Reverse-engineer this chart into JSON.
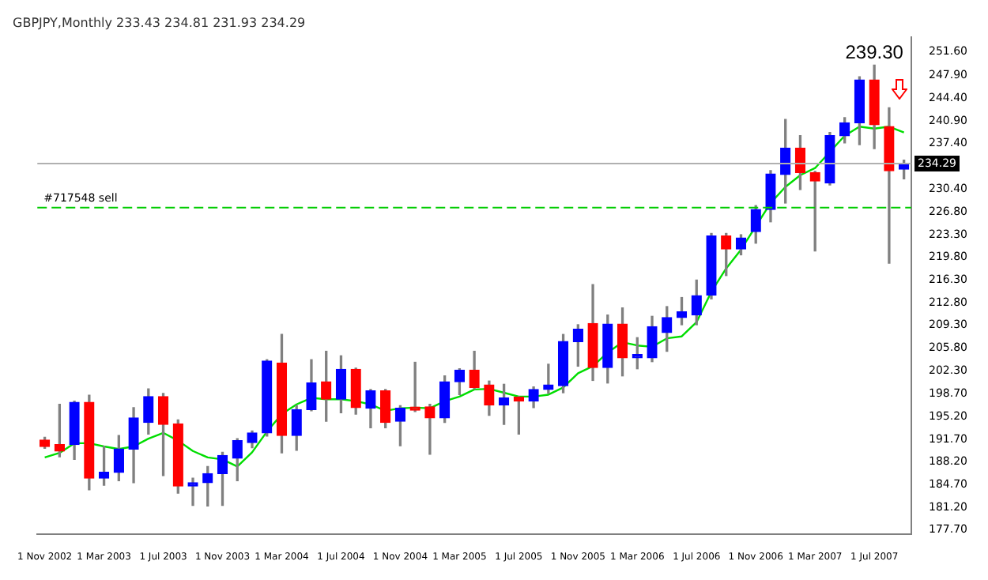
{
  "chart_data": {
    "type": "candlestick",
    "title": "GBPJPY,Monthly 233.43 234.81 231.93 234.29",
    "categories": [
      "1 Nov 2002",
      null,
      null,
      null,
      "1 Mar 2003",
      null,
      null,
      null,
      "1 Jul 2003",
      null,
      null,
      null,
      "1 Nov 2003",
      null,
      null,
      null,
      "1 Mar 2004",
      null,
      null,
      null,
      "1 Jul 2004",
      null,
      null,
      null,
      "1 Nov 2004",
      null,
      null,
      null,
      "1 Mar 2005",
      null,
      null,
      null,
      "1 Jul 2005",
      null,
      null,
      null,
      "1 Nov 2005",
      null,
      null,
      null,
      "1 Mar 2006",
      null,
      null,
      null,
      "1 Jul 2006",
      null,
      null,
      null,
      "1 Nov 2006",
      null,
      null,
      null,
      "1 Mar 2007",
      null,
      null,
      null,
      "1 Jul 2007",
      null,
      null
    ],
    "series": [
      {
        "type": "candlestick",
        "ohlc": [
          [
            191.6,
            192.0,
            190.3,
            190.6
          ],
          [
            190.9,
            197.1,
            189.0,
            189.9
          ],
          [
            190.9,
            197.6,
            188.6,
            197.4
          ],
          [
            197.4,
            198.5,
            183.9,
            185.7
          ],
          [
            185.7,
            190.6,
            184.6,
            186.6
          ],
          [
            186.6,
            192.3,
            185.3,
            190.2
          ],
          [
            190.2,
            196.6,
            185.0,
            195.0
          ],
          [
            194.3,
            199.5,
            192.5,
            198.3
          ],
          [
            198.3,
            198.8,
            186.1,
            194.0
          ],
          [
            194.1,
            194.7,
            183.4,
            184.5
          ],
          [
            184.5,
            185.7,
            181.5,
            185.0
          ],
          [
            185.0,
            187.5,
            181.4,
            186.4
          ],
          [
            186.4,
            189.7,
            181.5,
            189.2
          ],
          [
            188.8,
            191.8,
            185.3,
            191.5
          ],
          [
            191.2,
            193.0,
            190.4,
            192.7
          ],
          [
            192.7,
            204.0,
            192.2,
            203.8
          ],
          [
            203.5,
            207.9,
            189.6,
            192.3
          ],
          [
            192.3,
            196.9,
            190.0,
            196.3
          ],
          [
            196.3,
            204.0,
            196.1,
            200.4
          ],
          [
            200.6,
            205.3,
            194.5,
            197.9
          ],
          [
            197.9,
            204.6,
            195.8,
            202.5
          ],
          [
            202.5,
            202.7,
            195.6,
            196.6
          ],
          [
            196.5,
            199.4,
            193.5,
            199.2
          ],
          [
            199.2,
            199.4,
            193.5,
            194.3
          ],
          [
            194.5,
            196.9,
            190.7,
            196.5
          ],
          [
            196.6,
            203.6,
            196.0,
            196.2
          ],
          [
            196.7,
            197.1,
            189.4,
            195.0
          ],
          [
            195.0,
            201.5,
            194.3,
            200.6
          ],
          [
            200.6,
            202.6,
            198.6,
            202.4
          ],
          [
            202.4,
            205.3,
            199.5,
            199.7
          ],
          [
            200.1,
            200.7,
            195.4,
            197.0
          ],
          [
            197.0,
            200.2,
            194.0,
            198.1
          ],
          [
            198.2,
            198.3,
            192.5,
            197.6
          ],
          [
            197.6,
            199.8,
            196.6,
            199.4
          ],
          [
            199.4,
            203.3,
            198.8,
            200.1
          ],
          [
            200.0,
            207.9,
            198.9,
            206.8
          ],
          [
            206.8,
            209.4,
            203.0,
            208.7
          ],
          [
            209.6,
            215.6,
            200.8,
            202.8
          ],
          [
            202.8,
            210.9,
            200.4,
            209.5
          ],
          [
            209.5,
            212.0,
            201.5,
            204.3
          ],
          [
            204.3,
            207.4,
            202.6,
            204.4
          ],
          [
            204.3,
            210.7,
            203.7,
            209.1
          ],
          [
            208.2,
            212.2,
            205.3,
            210.5
          ],
          [
            210.5,
            213.6,
            209.4,
            211.4
          ],
          [
            210.9,
            216.3,
            209.4,
            213.9
          ],
          [
            214.0,
            223.5,
            213.4,
            223.1
          ],
          [
            223.1,
            223.5,
            217.0,
            221.1
          ],
          [
            221.1,
            223.3,
            220.2,
            222.8
          ],
          [
            223.8,
            227.8,
            222.0,
            227.2
          ],
          [
            227.2,
            233.2,
            225.3,
            232.7
          ],
          [
            232.6,
            241.1,
            228.2,
            236.7
          ],
          [
            236.7,
            238.6,
            230.3,
            232.9
          ],
          [
            232.9,
            233.1,
            220.8,
            231.6
          ],
          [
            231.3,
            239.1,
            231.0,
            238.6
          ],
          [
            238.6,
            241.4,
            237.5,
            240.6
          ],
          [
            240.6,
            247.7,
            237.2,
            247.2
          ],
          [
            247.2,
            249.5,
            236.6,
            240.3
          ],
          [
            240.0,
            242.9,
            218.9,
            233.2
          ],
          [
            233.43,
            234.81,
            231.93,
            234.29
          ]
        ],
        "colors": [
          "#ff0000",
          "#ff0000",
          "#0000ff",
          "#ff0000",
          "#0000ff",
          "#0000ff",
          "#0000ff",
          "#0000ff",
          "#ff0000",
          "#ff0000",
          "#0000ff",
          "#0000ff",
          "#0000ff",
          "#0000ff",
          "#0000ff",
          "#0000ff",
          "#ff0000",
          "#0000ff",
          "#0000ff",
          "#ff0000",
          "#0000ff",
          "#ff0000",
          "#0000ff",
          "#ff0000",
          "#0000ff",
          "#ff0000",
          "#ff0000",
          "#0000ff",
          "#0000ff",
          "#ff0000",
          "#ff0000",
          "#0000ff",
          "#ff0000",
          "#0000ff",
          "#0000ff",
          "#0000ff",
          "#0000ff",
          "#ff0000",
          "#0000ff",
          "#ff0000",
          "#0000ff",
          "#0000ff",
          "#0000ff",
          "#0000ff",
          "#0000ff",
          "#0000ff",
          "#ff0000",
          "#0000ff",
          "#0000ff",
          "#0000ff",
          "#0000ff",
          "#ff0000",
          "#ff0000",
          "#0000ff",
          "#0000ff",
          "#0000ff",
          "#ff0000",
          "#ff0000",
          "#0000ff"
        ]
      },
      {
        "type": "line",
        "color": "#00dd00",
        "values": [
          188.9,
          189.6,
          191.1,
          191.1,
          190.6,
          190.2,
          190.6,
          191.8,
          192.7,
          191.5,
          189.9,
          188.9,
          188.6,
          187.5,
          189.7,
          192.9,
          195.6,
          197.1,
          198.1,
          197.9,
          197.9,
          197.6,
          197.1,
          196.1,
          196.5,
          196.6,
          196.5,
          197.6,
          198.3,
          199.4,
          199.5,
          198.9,
          198.3,
          198.3,
          198.6,
          199.7,
          201.9,
          203.0,
          205.1,
          206.7,
          206.2,
          206.0,
          207.3,
          207.6,
          209.8,
          214.5,
          218.1,
          221.0,
          224.6,
          228.2,
          230.7,
          232.5,
          233.6,
          236.1,
          238.6,
          240.0,
          239.7,
          240.0,
          239.1
        ]
      }
    ],
    "ylim": [
      177.1,
      253.8
    ],
    "yticks": [
      {
        "value": 177.7,
        "label": "177.70"
      },
      {
        "value": 181.2,
        "label": "181.20"
      },
      {
        "value": 184.7,
        "label": "184.70"
      },
      {
        "value": 188.2,
        "label": "188.20"
      },
      {
        "value": 191.7,
        "label": "191.70"
      },
      {
        "value": 195.2,
        "label": "195.20"
      },
      {
        "value": 198.7,
        "label": "198.70"
      },
      {
        "value": 202.3,
        "label": "202.30"
      },
      {
        "value": 205.8,
        "label": "205.80"
      },
      {
        "value": 209.3,
        "label": "209.30"
      },
      {
        "value": 212.8,
        "label": "212.80"
      },
      {
        "value": 216.3,
        "label": "216.30"
      },
      {
        "value": 219.8,
        "label": "219.80"
      },
      {
        "value": 223.3,
        "label": "223.30"
      },
      {
        "value": 226.8,
        "label": "226.80"
      },
      {
        "value": 230.4,
        "label": "230.40"
      },
      {
        "value": 237.4,
        "label": "237.40"
      },
      {
        "value": 240.9,
        "label": "240.90"
      },
      {
        "value": 244.4,
        "label": "244.40"
      },
      {
        "value": 247.9,
        "label": "247.90"
      },
      {
        "value": 251.6,
        "label": "251.60"
      }
    ],
    "ref_lines": [
      {
        "axis": "y",
        "value": 234.29,
        "label": "234.29",
        "color": "#b0b0b0",
        "line_style": "solid"
      },
      {
        "axis": "y",
        "value": 227.5,
        "label": "#717548 sell",
        "color": "#00cc00",
        "line_style": "dashed"
      }
    ],
    "annotations": [
      "239.30"
    ]
  }
}
